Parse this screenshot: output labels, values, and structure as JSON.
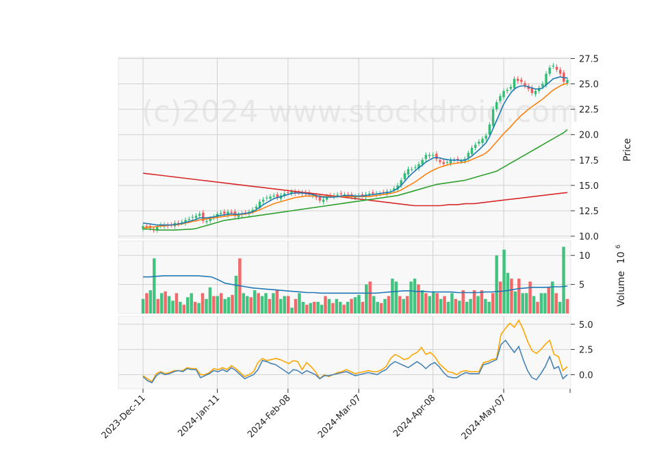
{
  "watermark": "(c)2024 www.stockdroid.com",
  "colors": {
    "up": "#2ebd72",
    "down": "#f05a5a",
    "panel_bg": "#f8f8f8",
    "grid": "#d0d0d0",
    "ma_fast": "#1f77b4",
    "ma_mid": "#ff7f0e",
    "ma_slow": "#2ca02c",
    "ma_long": "#d62728",
    "macd": "#4682b4",
    "signal": "#ffa500",
    "volume_avg": "#1f77b4"
  },
  "chart_data": [
    {
      "type": "candlestick",
      "panel": "price",
      "ylabel": "Price",
      "ylim": [
        9.8,
        27.6
      ],
      "yticks": [
        "10.0",
        "12.5",
        "15.0",
        "17.5",
        "20.0",
        "22.5",
        "25.0",
        "27.5"
      ],
      "xticks": [
        "2023-Dec-11",
        "2024-Jan-11",
        "2024-Feb-08",
        "2024-Mar-07",
        "2024-Apr-08",
        "2024-May-07"
      ],
      "close": [
        11.0,
        10.9,
        10.8,
        10.6,
        10.9,
        11.1,
        11.1,
        11.0,
        11.1,
        11.3,
        11.2,
        11.4,
        11.6,
        11.7,
        11.9,
        12.0,
        12.2,
        11.5,
        11.5,
        11.7,
        11.9,
        12.2,
        12.3,
        12.2,
        12.4,
        12.3,
        12.0,
        12.1,
        12.2,
        12.3,
        12.4,
        12.6,
        12.9,
        13.4,
        13.6,
        13.8,
        13.9,
        14.0,
        13.8,
        14.0,
        14.2,
        14.3,
        14.4,
        14.2,
        14.3,
        14.3,
        14.2,
        14.1,
        14.0,
        13.8,
        13.5,
        13.6,
        13.9,
        14.0,
        14.0,
        14.1,
        14.2,
        14.1,
        14.0,
        13.9,
        13.9,
        14.0,
        14.0,
        14.1,
        14.2,
        14.2,
        14.2,
        14.2,
        14.3,
        14.4,
        14.4,
        14.7,
        15.0,
        15.5,
        16.2,
        16.6,
        16.6,
        16.8,
        17.1,
        17.5,
        18.0,
        18.0,
        18.0,
        17.6,
        17.3,
        17.1,
        17.3,
        17.5,
        17.5,
        17.5,
        17.4,
        17.6,
        18.2,
        18.7,
        19.0,
        19.3,
        19.6,
        19.9,
        21.0,
        22.5,
        23.2,
        23.8,
        24.3,
        24.4,
        24.7,
        25.5,
        25.3,
        25.2,
        24.8,
        24.5,
        24.1,
        24.3,
        24.6,
        25.0,
        26.0,
        26.6,
        26.8,
        26.4,
        26.0,
        25.2,
        25.4
      ],
      "ma_fast": [
        11.3,
        11.25,
        11.2,
        11.15,
        11.1,
        11.1,
        11.1,
        11.1,
        11.1,
        11.15,
        11.2,
        11.25,
        11.35,
        11.45,
        11.55,
        11.65,
        11.8,
        11.8,
        11.8,
        11.85,
        11.9,
        12.0,
        12.05,
        12.1,
        12.15,
        12.2,
        12.15,
        12.15,
        12.2,
        12.25,
        12.3,
        12.4,
        12.6,
        12.85,
        13.1,
        13.3,
        13.5,
        13.7,
        13.8,
        13.9,
        14.0,
        14.1,
        14.2,
        14.25,
        14.25,
        14.25,
        14.2,
        14.15,
        14.1,
        14.0,
        13.9,
        13.85,
        13.85,
        13.85,
        13.85,
        13.9,
        13.95,
        14.0,
        14.0,
        14.0,
        13.95,
        13.95,
        13.95,
        14.0,
        14.05,
        14.1,
        14.15,
        14.2,
        14.25,
        14.3,
        14.35,
        14.5,
        14.7,
        15.0,
        15.4,
        15.8,
        16.15,
        16.45,
        16.75,
        17.0,
        17.3,
        17.5,
        17.7,
        17.75,
        17.7,
        17.6,
        17.55,
        17.5,
        17.5,
        17.5,
        17.45,
        17.5,
        17.65,
        17.9,
        18.2,
        18.5,
        18.85,
        19.2,
        19.8,
        20.6,
        21.4,
        22.2,
        23.0,
        23.6,
        24.1,
        24.5,
        24.7,
        24.8,
        24.8,
        24.7,
        24.6,
        24.5,
        24.5,
        24.6,
        24.9,
        25.2,
        25.5,
        25.6,
        25.7,
        25.6,
        25.6
      ],
      "ma_mid": [
        10.8,
        10.85,
        10.9,
        10.9,
        10.95,
        11.0,
        11.0,
        11.05,
        11.1,
        11.1,
        11.15,
        11.2,
        11.3,
        11.35,
        11.45,
        11.5,
        11.6,
        11.65,
        11.7,
        11.75,
        11.8,
        11.85,
        11.9,
        11.95,
        12.0,
        12.05,
        12.05,
        12.1,
        12.15,
        12.2,
        12.25,
        12.35,
        12.45,
        12.6,
        12.75,
        12.9,
        13.05,
        13.2,
        13.3,
        13.4,
        13.5,
        13.6,
        13.7,
        13.8,
        13.85,
        13.9,
        13.95,
        13.95,
        13.95,
        13.95,
        13.95,
        13.9,
        13.9,
        13.9,
        13.9,
        13.9,
        13.9,
        13.9,
        13.9,
        13.9,
        13.9,
        13.9,
        13.9,
        13.9,
        13.9,
        13.95,
        14.0,
        14.05,
        14.1,
        14.15,
        14.2,
        14.3,
        14.4,
        14.55,
        14.75,
        14.95,
        15.15,
        15.35,
        15.6,
        15.85,
        16.1,
        16.3,
        16.5,
        16.65,
        16.8,
        16.9,
        17.0,
        17.1,
        17.15,
        17.2,
        17.25,
        17.3,
        17.4,
        17.55,
        17.7,
        17.85,
        18.0,
        18.2,
        18.5,
        18.9,
        19.3,
        19.7,
        20.1,
        20.45,
        20.8,
        21.2,
        21.55,
        21.9,
        22.2,
        22.5,
        22.75,
        23.0,
        23.25,
        23.5,
        23.8,
        24.1,
        24.4,
        24.6,
        24.8,
        24.95,
        25.05
      ],
      "ma_slow": [
        10.7,
        10.7,
        10.7,
        10.65,
        10.6,
        10.6,
        10.6,
        10.6,
        10.6,
        10.6,
        10.62,
        10.64,
        10.66,
        10.68,
        10.7,
        10.75,
        10.85,
        10.95,
        11.05,
        11.15,
        11.25,
        11.35,
        11.45,
        11.55,
        11.6,
        11.65,
        11.7,
        11.75,
        11.8,
        11.85,
        11.9,
        11.95,
        12.0,
        12.05,
        12.1,
        12.15,
        12.2,
        12.25,
        12.3,
        12.35,
        12.4,
        12.45,
        12.5,
        12.55,
        12.6,
        12.65,
        12.7,
        12.75,
        12.8,
        12.85,
        12.9,
        12.95,
        13.0,
        13.05,
        13.1,
        13.15,
        13.2,
        13.25,
        13.3,
        13.35,
        13.4,
        13.45,
        13.5,
        13.55,
        13.6,
        13.65,
        13.7,
        13.75,
        13.8,
        13.85,
        13.9,
        13.95,
        14.0,
        14.1,
        14.2,
        14.3,
        14.4,
        14.5,
        14.6,
        14.7,
        14.8,
        14.9,
        15.0,
        15.1,
        15.15,
        15.2,
        15.25,
        15.3,
        15.35,
        15.4,
        15.45,
        15.5,
        15.6,
        15.7,
        15.8,
        15.9,
        16.0,
        16.1,
        16.2,
        16.3,
        16.4,
        16.6,
        16.8,
        17.0,
        17.2,
        17.4,
        17.6,
        17.8,
        18.0,
        18.2,
        18.4,
        18.6,
        18.8,
        19.0,
        19.2,
        19.4,
        19.6,
        19.8,
        20.0,
        20.2,
        20.5
      ],
      "ma_long": [
        16.2,
        16.1,
        16.0,
        15.9,
        15.8,
        15.7,
        15.6,
        15.5,
        15.4,
        15.3,
        15.2,
        15.1,
        15.0,
        14.9,
        14.8,
        14.7,
        14.6,
        14.5,
        14.4,
        14.3,
        14.2,
        14.1,
        14.0,
        13.9,
        13.8,
        13.7,
        13.6,
        13.5,
        13.4,
        13.3,
        13.2,
        13.1,
        13.0,
        13.0,
        13.0,
        13.0,
        13.1,
        13.1,
        13.2,
        13.2,
        13.3,
        13.4,
        13.5,
        13.6,
        13.7,
        13.8,
        13.9,
        14.0,
        14.1,
        14.2,
        14.3
      ],
      "ma_long_note": "",
      "price_lines": [
        "ma_fast",
        "ma_mid",
        "ma_slow",
        "ma_long"
      ]
    },
    {
      "type": "bar",
      "panel": "volume",
      "ylabel": "Volume",
      "ylabel_exp": "10",
      "ylabel_exp_power": "6",
      "ylim": [
        0,
        12.5
      ],
      "yticks": [
        "5",
        "10"
      ],
      "values": [
        2.5,
        3.5,
        4.0,
        9.5,
        2.5,
        3.5,
        3.8,
        3.0,
        2.2,
        3.5,
        2.0,
        1.5,
        2.8,
        3.5,
        2.0,
        1.8,
        3.5,
        2.5,
        4.5,
        3.0,
        3.0,
        3.5,
        2.5,
        2.8,
        3.2,
        6.5,
        9.5,
        3.5,
        3.0,
        2.8,
        4.0,
        3.5,
        3.0,
        3.5,
        2.5,
        3.5,
        4.0,
        2.5,
        3.0,
        3.0,
        1.0,
        2.5,
        3.5,
        2.0,
        1.5,
        1.8,
        2.0,
        2.0,
        1.5,
        3.0,
        2.5,
        1.8,
        2.5,
        2.0,
        1.5,
        2.0,
        2.5,
        2.8,
        3.2,
        2.0,
        5.0,
        5.5,
        3.0,
        2.0,
        1.8,
        2.5,
        3.0,
        6.0,
        5.5,
        3.0,
        2.5,
        3.0,
        5.5,
        6.0,
        5.0,
        4.0,
        3.5,
        3.0,
        3.8,
        3.5,
        2.5,
        3.0,
        2.0,
        3.5,
        2.5,
        2.2,
        4.0,
        2.0,
        2.5,
        4.0,
        3.0,
        4.0,
        2.5,
        2.0,
        3.5,
        10.0,
        5.5,
        11.0,
        7.0,
        6.0,
        3.8,
        6.0,
        3.5,
        3.5,
        5.5,
        3.0,
        2.0,
        3.5,
        3.5,
        4.5,
        5.5,
        3.5,
        2.0,
        11.5,
        2.5
      ],
      "avg": [
        6.3,
        6.3,
        6.4,
        6.5,
        6.5,
        6.5,
        6.5,
        6.5,
        6.5,
        6.4,
        6.3,
        5.8,
        5.2,
        5.0,
        4.8,
        4.6,
        4.4,
        4.3,
        4.2,
        4.1,
        4.0,
        3.9,
        3.8,
        3.7,
        3.6,
        3.6,
        3.5,
        3.5,
        3.5,
        3.5,
        3.5,
        3.5,
        3.5,
        3.5,
        3.5,
        3.6,
        3.7,
        3.8,
        3.9,
        3.9,
        3.8,
        3.8,
        3.7,
        3.7,
        3.7,
        3.7,
        3.6,
        3.6,
        3.6,
        3.6,
        3.7,
        3.7,
        3.8,
        3.9,
        4.1,
        4.3,
        4.4,
        4.5,
        4.5,
        4.5,
        4.6,
        4.6,
        4.7
      ]
    },
    {
      "type": "line",
      "panel": "macd",
      "ylim": [
        -1.4,
        5.8
      ],
      "yticks": [
        "0.0",
        "2.5",
        "5.0"
      ],
      "series": [
        {
          "key": "macd",
          "values": [
            -0.2,
            -0.6,
            -0.8,
            -0.1,
            0.2,
            0.0,
            0.1,
            0.3,
            0.4,
            0.3,
            0.6,
            0.5,
            0.5,
            -0.3,
            -0.1,
            0.1,
            0.4,
            0.3,
            0.5,
            0.3,
            0.7,
            0.4,
            0.0,
            -0.4,
            -0.2,
            0.0,
            0.5,
            1.4,
            1.3,
            1.1,
            1.0,
            0.7,
            0.4,
            0.1,
            0.5,
            0.4,
            0.1,
            0.4,
            0.2,
            0.0,
            -0.4,
            -0.1,
            -0.1,
            0.0,
            0.1,
            0.2,
            0.3,
            0.1,
            -0.1,
            0.0,
            0.1,
            0.2,
            0.1,
            0.0,
            0.3,
            0.5,
            1.0,
            1.3,
            1.1,
            0.9,
            0.7,
            1.0,
            1.3,
            1.0,
            0.6,
            1.0,
            1.2,
            0.8,
            0.2,
            -0.2,
            -0.3,
            -0.3,
            0.0,
            0.2,
            0.1,
            0.1,
            0.1,
            1.0,
            1.1,
            1.3,
            1.5,
            3.0,
            3.4,
            2.8,
            2.2,
            2.8,
            1.5,
            0.4,
            -0.3,
            -0.5,
            0.1,
            0.8,
            1.8,
            0.6,
            0.8,
            -0.4,
            0.0
          ]
        },
        {
          "key": "signal",
          "values": [
            -0.1,
            -0.4,
            -0.7,
            0.1,
            0.3,
            0.1,
            0.2,
            0.4,
            0.4,
            0.4,
            0.7,
            0.6,
            0.6,
            0.0,
            0.0,
            0.2,
            0.6,
            0.5,
            0.7,
            0.5,
            0.9,
            0.6,
            0.2,
            -0.2,
            0.0,
            0.3,
            1.2,
            1.6,
            1.4,
            1.5,
            1.6,
            1.5,
            1.3,
            1.1,
            1.4,
            1.3,
            0.5,
            1.2,
            0.8,
            0.3,
            -0.4,
            0.0,
            -0.2,
            0.0,
            0.2,
            0.3,
            0.5,
            0.3,
            0.1,
            0.2,
            0.3,
            0.4,
            0.3,
            0.3,
            0.5,
            0.8,
            1.6,
            2.0,
            1.8,
            1.5,
            1.6,
            2.0,
            2.2,
            2.7,
            2.0,
            2.2,
            1.8,
            1.1,
            0.7,
            0.3,
            0.2,
            0.0,
            0.3,
            0.4,
            0.3,
            0.3,
            0.3,
            1.2,
            1.3,
            1.5,
            1.6,
            4.0,
            4.6,
            5.1,
            4.7,
            5.4,
            4.5,
            3.3,
            2.4,
            2.1,
            2.5,
            3.0,
            3.4,
            2.0,
            1.8,
            0.4,
            0.8
          ]
        }
      ]
    }
  ]
}
